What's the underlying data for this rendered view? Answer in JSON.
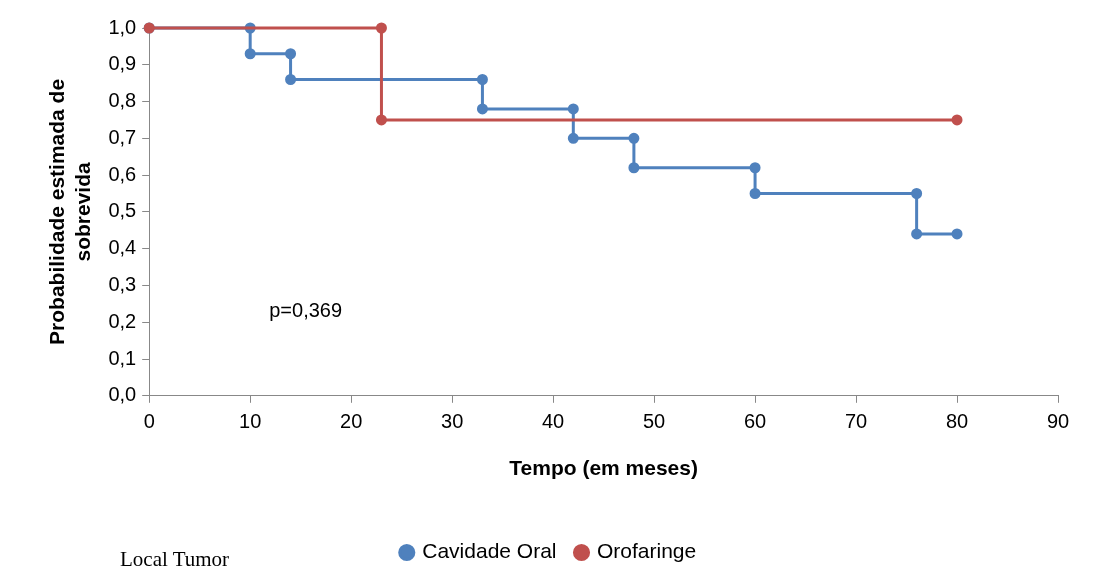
{
  "chart_data": {
    "type": "line",
    "xlabel": "Tempo (em meses)",
    "ylabel": "Probabilidade estimada de sobrevida",
    "xlim": [
      0,
      90
    ],
    "xticks": [
      0,
      10,
      20,
      30,
      40,
      50,
      60,
      70,
      80,
      90
    ],
    "ylim": [
      0,
      1
    ],
    "yticks": [
      {
        "value": 0,
        "label": "0,0"
      },
      {
        "value": 0.1,
        "label": "0,1"
      },
      {
        "value": 0.2,
        "label": "0,2"
      },
      {
        "value": 0.3,
        "label": "0,3"
      },
      {
        "value": 0.4,
        "label": "0,4"
      },
      {
        "value": 0.5,
        "label": "0,5"
      },
      {
        "value": 0.6,
        "label": "0,6"
      },
      {
        "value": 0.7,
        "label": "0,7"
      },
      {
        "value": 0.8,
        "label": "0,8"
      },
      {
        "value": 0.9,
        "label": "0,9"
      },
      {
        "value": 1,
        "label": "1,0"
      }
    ],
    "series": [
      {
        "name": "Cavidade Oral",
        "color": "#4f81bd",
        "x": [
          0,
          10,
          10,
          14,
          14,
          33,
          33,
          42,
          42,
          48,
          48,
          60,
          60,
          76,
          76,
          80
        ],
        "values": [
          1,
          1,
          0.93,
          0.93,
          0.86,
          0.86,
          0.78,
          0.78,
          0.7,
          0.7,
          0.62,
          0.62,
          0.55,
          0.55,
          0.44,
          0.44
        ]
      },
      {
        "name": "Orofaringe",
        "color": "#c0504d",
        "x": [
          0,
          23,
          23,
          80
        ],
        "values": [
          1,
          1,
          0.75,
          0.75
        ]
      }
    ],
    "annotations": [
      "p=0,369",
      "Local Tumor"
    ],
    "grid": false,
    "legend": "bottom",
    "marker": "circle",
    "line_style": "solid"
  }
}
